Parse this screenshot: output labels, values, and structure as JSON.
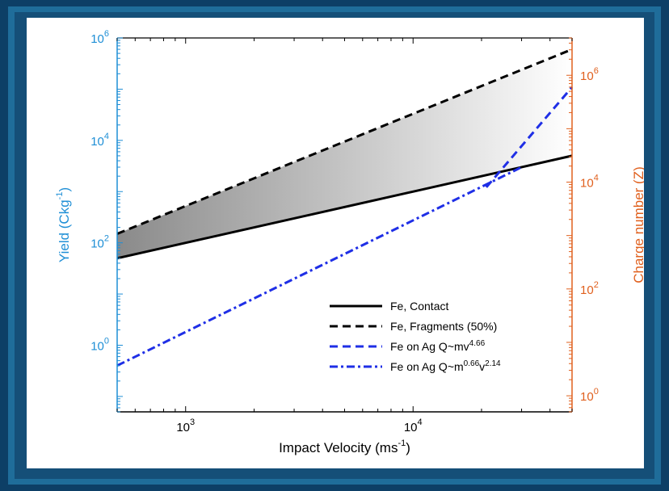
{
  "chart_data": {
    "type": "line",
    "xlabel": "Impact Velocity (ms",
    "xlabel_sup": "-1",
    "xlabel_tail": ")",
    "ylabel_left": "Yield (Ckg",
    "ylabel_left_sup": "-1",
    "ylabel_left_tail": ")",
    "ylabel_right": "Charge number (Z)",
    "x_scale": "log",
    "y_scale": "log",
    "xlim": [
      500,
      50000
    ],
    "ylim_left": [
      0.05,
      1000000
    ],
    "ylim_right": [
      0.5,
      5000000
    ],
    "x_ticks": [
      {
        "base": "10",
        "exp": "3",
        "value": 1000
      },
      {
        "base": "10",
        "exp": "4",
        "value": 10000
      }
    ],
    "y_left_ticks": [
      {
        "base": "10",
        "exp": "0",
        "value": 1
      },
      {
        "base": "10",
        "exp": "2",
        "value": 100
      },
      {
        "base": "10",
        "exp": "4",
        "value": 10000
      },
      {
        "base": "10",
        "exp": "6",
        "value": 1000000
      }
    ],
    "y_right_ticks": [
      {
        "base": "10",
        "exp": "0",
        "value": 1
      },
      {
        "base": "10",
        "exp": "2",
        "value": 100
      },
      {
        "base": "10",
        "exp": "4",
        "value": 10000
      },
      {
        "base": "10",
        "exp": "6",
        "value": 1000000
      }
    ],
    "series": [
      {
        "name": "Fe, Contact",
        "style": "solid",
        "color": "#000000",
        "axis": "left",
        "x": [
          500,
          50000
        ],
        "y": [
          50,
          5000
        ]
      },
      {
        "name": "Fe, Fragments (50%)",
        "style": "dashed",
        "color": "#000000",
        "axis": "left",
        "x": [
          500,
          50000
        ],
        "y": [
          150,
          600000
        ]
      },
      {
        "name": "Fe on Ag Q~mv",
        "name_sup": "4.66",
        "style": "dashed",
        "color": "#1f2fe6",
        "axis": "right",
        "x": [
          21000,
          50000
        ],
        "y": [
          8000,
          600000
        ]
      },
      {
        "name": "Fe on Ag Q~m",
        "name_sup": "0.66",
        "name_mid": "v",
        "name_sup2": "2.14",
        "style": "dashdot",
        "color": "#1f2fe6",
        "axis": "left",
        "x": [
          500,
          30000
        ],
        "y": [
          0.4,
          3000
        ]
      }
    ],
    "shaded_region": {
      "between": [
        "Fe, Contact",
        "Fe, Fragments (50%)"
      ],
      "gradient": [
        "#8a8a8a",
        "#ffffff"
      ]
    },
    "legend_position": "lower-right",
    "colors": {
      "left_axis": "#1f8fd6",
      "right_axis": "#e0601e"
    }
  }
}
